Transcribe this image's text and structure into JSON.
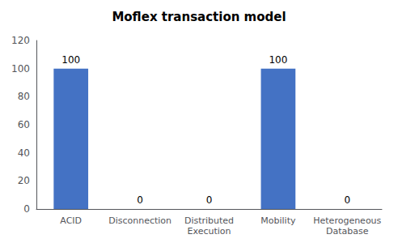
{
  "chart_data": {
    "type": "bar",
    "title": "Moflex transaction model",
    "categories": [
      "ACID",
      "Disconnection",
      "Distributed\nExecution",
      "Mobility",
      "Heterogeneous\nDatabase"
    ],
    "values": [
      100,
      0,
      0,
      100,
      0
    ],
    "color": "#4472C4",
    "ylim": [
      0,
      120
    ],
    "yticks": [
      0,
      20,
      40,
      60,
      80,
      100,
      120
    ],
    "grid": false,
    "data_labels": true
  }
}
